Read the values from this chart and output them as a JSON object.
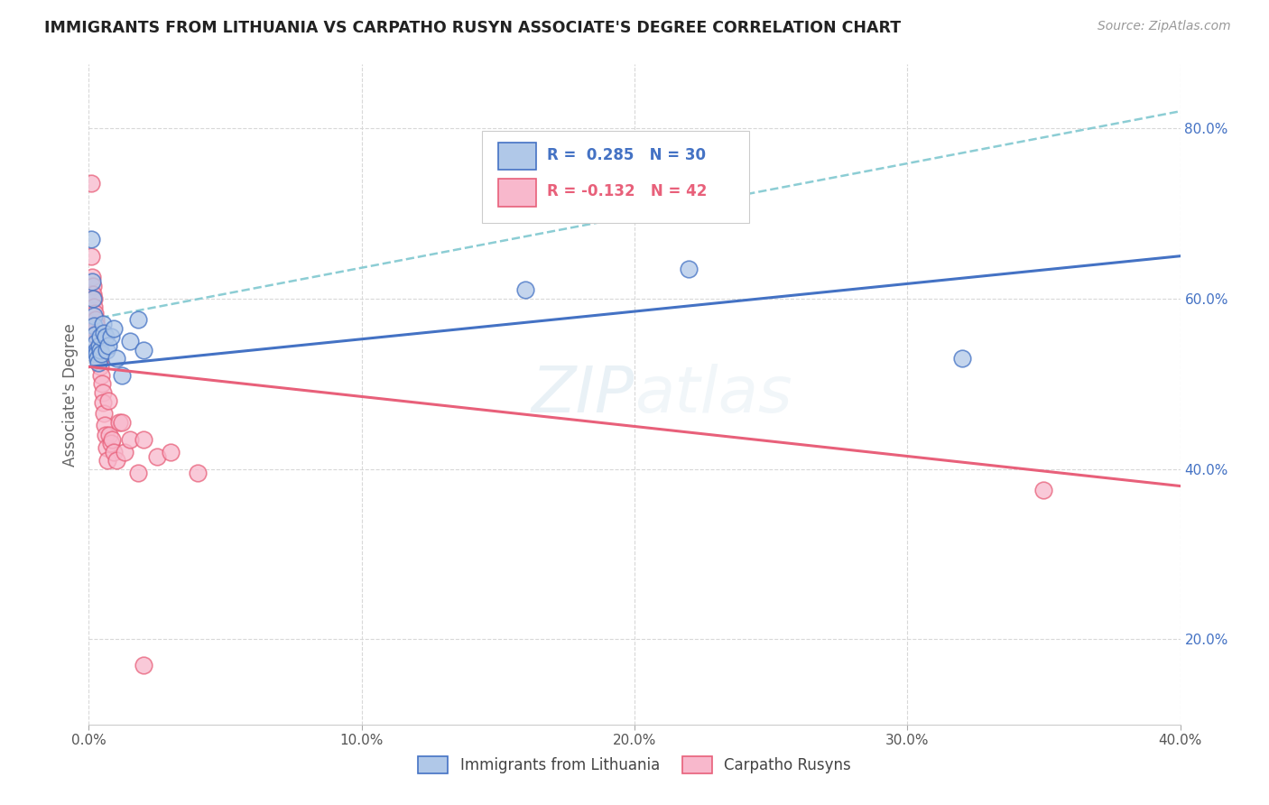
{
  "title": "IMMIGRANTS FROM LITHUANIA VS CARPATHO RUSYN ASSOCIATE'S DEGREE CORRELATION CHART",
  "source": "Source: ZipAtlas.com",
  "ylabel": "Associate's Degree",
  "xlim": [
    0.0,
    0.4
  ],
  "ylim": [
    0.1,
    0.875
  ],
  "xtick_labels": [
    "0.0%",
    "10.0%",
    "20.0%",
    "30.0%",
    "40.0%"
  ],
  "xtick_vals": [
    0.0,
    0.1,
    0.2,
    0.3,
    0.4
  ],
  "ytick_labels_right": [
    "20.0%",
    "40.0%",
    "60.0%",
    "80.0%"
  ],
  "ytick_vals_right": [
    0.2,
    0.4,
    0.6,
    0.8
  ],
  "watermark": "ZIPatlas",
  "blue_scatter": [
    [
      0.0008,
      0.67
    ],
    [
      0.0012,
      0.62
    ],
    [
      0.0015,
      0.6
    ],
    [
      0.0018,
      0.58
    ],
    [
      0.002,
      0.568
    ],
    [
      0.0022,
      0.558
    ],
    [
      0.0025,
      0.548
    ],
    [
      0.0028,
      0.54
    ],
    [
      0.003,
      0.535
    ],
    [
      0.0032,
      0.53
    ],
    [
      0.0035,
      0.525
    ],
    [
      0.0038,
      0.545
    ],
    [
      0.004,
      0.54
    ],
    [
      0.0042,
      0.555
    ],
    [
      0.0045,
      0.535
    ],
    [
      0.005,
      0.57
    ],
    [
      0.0055,
      0.56
    ],
    [
      0.006,
      0.555
    ],
    [
      0.0065,
      0.54
    ],
    [
      0.007,
      0.545
    ],
    [
      0.008,
      0.555
    ],
    [
      0.009,
      0.565
    ],
    [
      0.01,
      0.53
    ],
    [
      0.012,
      0.51
    ],
    [
      0.015,
      0.55
    ],
    [
      0.018,
      0.575
    ],
    [
      0.02,
      0.54
    ],
    [
      0.16,
      0.61
    ],
    [
      0.22,
      0.635
    ],
    [
      0.32,
      0.53
    ]
  ],
  "pink_scatter": [
    [
      0.0008,
      0.735
    ],
    [
      0.001,
      0.65
    ],
    [
      0.0012,
      0.625
    ],
    [
      0.0014,
      0.615
    ],
    [
      0.0016,
      0.605
    ],
    [
      0.0018,
      0.6
    ],
    [
      0.002,
      0.59
    ],
    [
      0.0022,
      0.583
    ],
    [
      0.0025,
      0.575
    ],
    [
      0.0027,
      0.568
    ],
    [
      0.003,
      0.56
    ],
    [
      0.0032,
      0.553
    ],
    [
      0.0035,
      0.545
    ],
    [
      0.0037,
      0.538
    ],
    [
      0.004,
      0.53
    ],
    [
      0.0042,
      0.52
    ],
    [
      0.0045,
      0.51
    ],
    [
      0.0047,
      0.5
    ],
    [
      0.005,
      0.49
    ],
    [
      0.0052,
      0.478
    ],
    [
      0.0055,
      0.465
    ],
    [
      0.0058,
      0.452
    ],
    [
      0.006,
      0.44
    ],
    [
      0.0065,
      0.425
    ],
    [
      0.0068,
      0.41
    ],
    [
      0.007,
      0.48
    ],
    [
      0.0075,
      0.44
    ],
    [
      0.008,
      0.43
    ],
    [
      0.0085,
      0.435
    ],
    [
      0.009,
      0.42
    ],
    [
      0.01,
      0.41
    ],
    [
      0.011,
      0.455
    ],
    [
      0.012,
      0.455
    ],
    [
      0.013,
      0.42
    ],
    [
      0.015,
      0.435
    ],
    [
      0.018,
      0.395
    ],
    [
      0.02,
      0.435
    ],
    [
      0.025,
      0.415
    ],
    [
      0.03,
      0.42
    ],
    [
      0.04,
      0.395
    ],
    [
      0.35,
      0.375
    ],
    [
      0.02,
      0.17
    ]
  ],
  "blue_line_x": [
    0.0,
    0.4
  ],
  "blue_line_y": [
    0.52,
    0.65
  ],
  "pink_line_x": [
    0.0,
    0.4
  ],
  "pink_line_y": [
    0.52,
    0.38
  ],
  "cyan_dash_line_x": [
    0.0,
    0.4
  ],
  "cyan_dash_line_y": [
    0.575,
    0.82
  ],
  "blue_color": "#4472c4",
  "pink_color": "#e8607a",
  "cyan_color": "#80c8d0",
  "background_color": "#ffffff",
  "grid_color": "#d8d8d8"
}
